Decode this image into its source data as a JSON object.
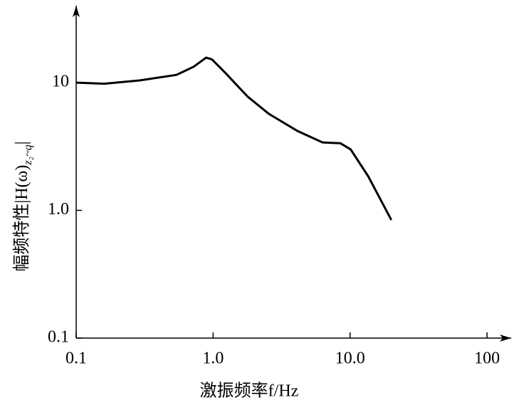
{
  "chart_data": {
    "type": "line",
    "xlabel": "激振频率f/Hz",
    "ylabel": {
      "text": "幅频特性|H(ω)",
      "subscript": "z₂~q",
      "end": "|"
    },
    "xscale": "log",
    "yscale": "log",
    "xlim": [
      0.1,
      150
    ],
    "ylim": [
      0.1,
      40
    ],
    "xticks": [
      0.1,
      {
        "value": 1,
        "label": "1.0"
      },
      {
        "value": 10,
        "label": "10.0"
      },
      100
    ],
    "yticks": [
      0.1,
      {
        "value": 1,
        "label": "1.0"
      },
      10
    ],
    "color": "#000000",
    "x": [
      0.1,
      0.16,
      0.29,
      0.54,
      0.72,
      0.89,
      0.98,
      1.24,
      1.78,
      2.55,
      4.1,
      6.3,
      8.5,
      10.1,
      13.6,
      20
    ],
    "values": [
      10,
      9.8,
      10.4,
      11.5,
      13.3,
      15.7,
      15.2,
      11.8,
      7.8,
      5.7,
      4.2,
      3.4,
      3.35,
      3.0,
      1.84,
      0.84
    ]
  }
}
